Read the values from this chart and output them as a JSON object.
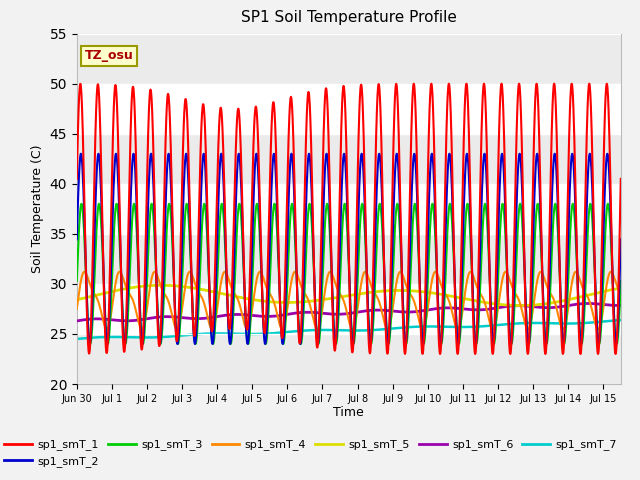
{
  "title": "SP1 Soil Temperature Profile",
  "xlabel": "Time",
  "ylabel": "Soil Temperature (C)",
  "ylim": [
    20,
    55
  ],
  "xlim_start": 0,
  "xlim_end": 15.5,
  "annotation": "TZ_osu",
  "series_colors": {
    "sp1_smT_1": "#ff0000",
    "sp1_smT_2": "#0000cc",
    "sp1_smT_3": "#00cc00",
    "sp1_smT_4": "#ff8800",
    "sp1_smT_5": "#dddd00",
    "sp1_smT_6": "#9900aa",
    "sp1_smT_7": "#00cccc"
  },
  "tick_labels": [
    "Jun 30",
    "Jul 1",
    "Jul 2",
    "Jul 3",
    "Jul 4",
    "Jul 5",
    "Jul 6",
    "Jul 7",
    "Jul 8",
    "Jul 9",
    "Jul 10",
    "Jul 11",
    "Jul 12",
    "Jul 13",
    "Jul 14",
    "Jul 15"
  ],
  "tick_positions": [
    0,
    1,
    2,
    3,
    4,
    5,
    6,
    7,
    8,
    9,
    10,
    11,
    12,
    13,
    14,
    15
  ],
  "fig_bg": "#f2f2f2",
  "plot_bg": "#ffffff",
  "grid_color": "#d8d8d8"
}
